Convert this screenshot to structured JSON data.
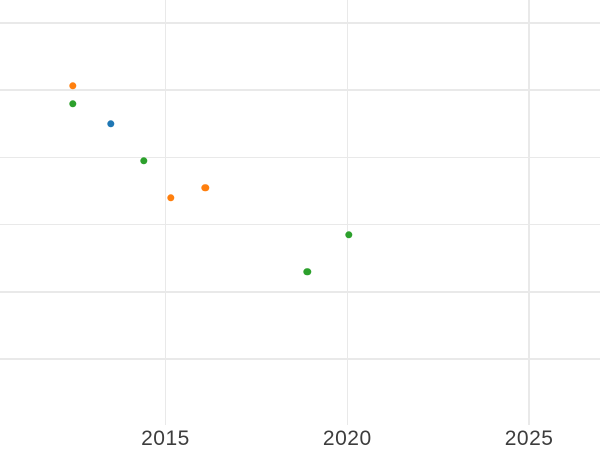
{
  "style": {
    "background": "#ffffff",
    "grid_color": "#e9e9e9",
    "tick_label_color": "#3d3d3d"
  },
  "chart_data": {
    "type": "scatter",
    "title": "",
    "xlabel": "",
    "ylabel": "",
    "grid": true,
    "legend_position": "none",
    "x_axis": {
      "tick_labels": [
        "2015",
        "2020",
        "2025"
      ],
      "tick_values": [
        2015,
        2020,
        2025
      ],
      "xlim": [
        2010.45,
        2026.95
      ]
    },
    "y_axis": {
      "tick_labels": [],
      "gridline_values": [
        0,
        1,
        2,
        3,
        4,
        5
      ],
      "ylim": [
        -0.98,
        5.34
      ],
      "unit": "unlabeled-grid-units"
    },
    "marker_radius_px": 3.7,
    "series": [
      {
        "name": "blue-series",
        "color": "#1f77b4",
        "points": [
          {
            "x": 2013.5,
            "y": 3.5
          }
        ]
      },
      {
        "name": "orange-series",
        "color": "#ff7f0e",
        "points": [
          {
            "x": 2012.45,
            "y": 4.06
          },
          {
            "x": 2015.15,
            "y": 2.4
          },
          {
            "x": 2016.1,
            "y": 2.55
          }
        ]
      },
      {
        "name": "green-series",
        "color": "#2ca02c",
        "points": [
          {
            "x": 2012.45,
            "y": 3.8
          },
          {
            "x": 2014.4,
            "y": 2.95
          },
          {
            "x": 2018.9,
            "y": 1.3
          },
          {
            "x": 2020.05,
            "y": 1.85
          }
        ]
      }
    ]
  }
}
